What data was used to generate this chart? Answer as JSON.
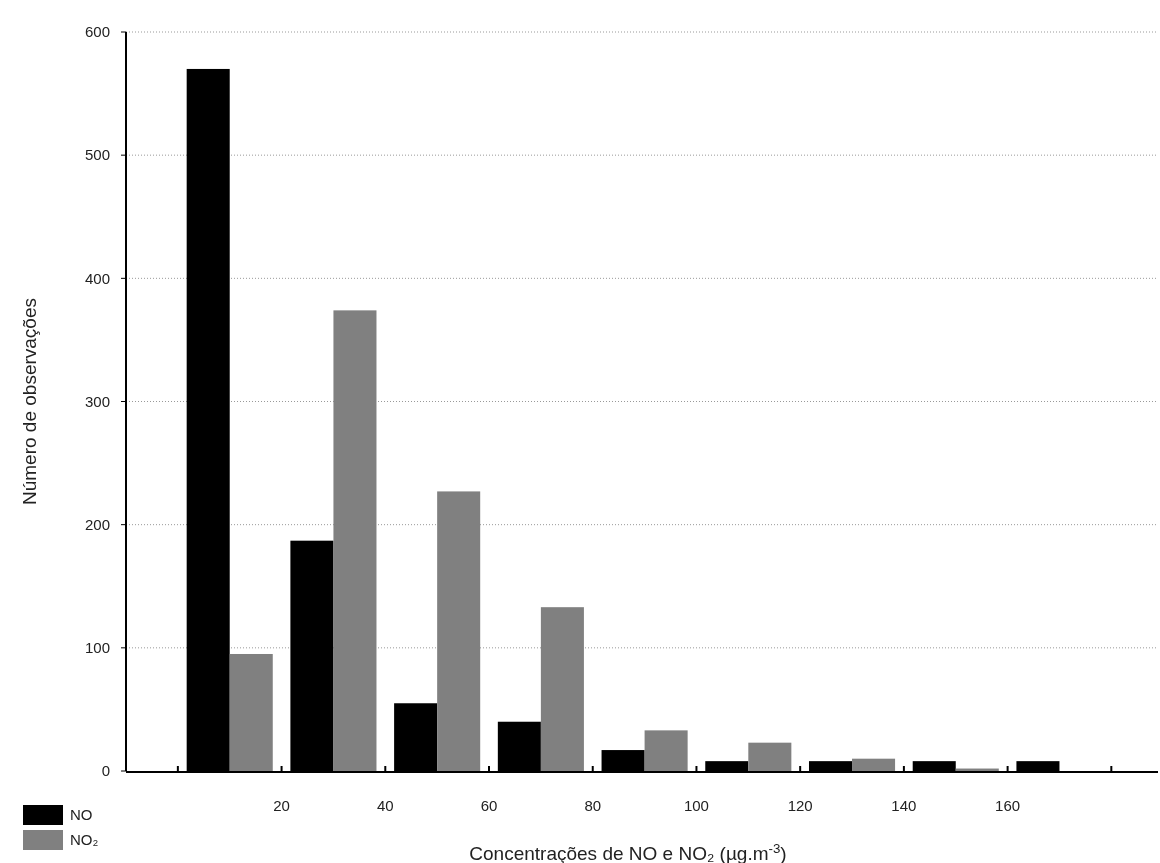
{
  "chart_data": {
    "type": "bar",
    "xlabel": "Concentrações de NO e NO₂ (µg.m$^{-3}$)",
    "ylabel": "Número de observações",
    "x": [
      10,
      30,
      50,
      70,
      90,
      110,
      130,
      150,
      170
    ],
    "series": [
      {
        "name": "NO",
        "color": "#000000",
        "values": [
          570,
          187,
          55,
          40,
          17,
          8,
          8,
          8,
          8
        ]
      },
      {
        "name": "NO₂",
        "color": "#808080",
        "values": [
          95,
          374,
          227,
          133,
          33,
          23,
          10,
          2,
          0
        ]
      }
    ],
    "xlim": [
      -10,
      189
    ],
    "xticks": [
      {
        "value": 0,
        "label": null
      },
      20,
      40,
      60,
      80,
      100,
      120,
      140,
      160,
      {
        "value": 180,
        "label": null
      }
    ],
    "ylim": [
      0,
      600
    ],
    "yticks": [
      0,
      100,
      200,
      300,
      400,
      500,
      600
    ],
    "grid": "y",
    "legend": "bottom left"
  }
}
